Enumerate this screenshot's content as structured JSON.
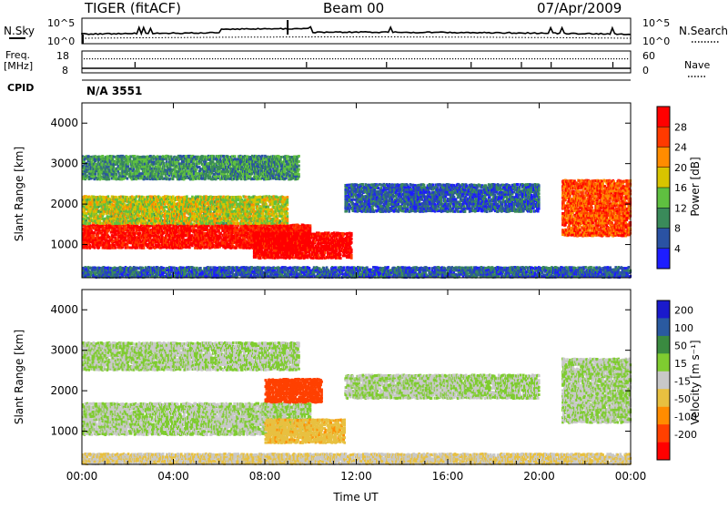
{
  "header": {
    "radar": "TIGER (fitACF)",
    "beam": "Beam 00",
    "date": "07/Apr/2009"
  },
  "top_panels": {
    "nsky_label": "N.Sky",
    "nsearch_label": "N.Search",
    "noise_ticks_left": [
      "10^5",
      "10^0"
    ],
    "noise_ticks_right": [
      "10^5",
      "10^0"
    ],
    "freq_label": "Freq.",
    "freq_unit": "[MHz]",
    "freq_ticks": [
      "18",
      "8"
    ],
    "nave_label": "Nave",
    "nave_ticks": [
      "60",
      "0"
    ],
    "cpid_label": "CPID",
    "cpid_value": "N/A 3551"
  },
  "power_panel": {
    "ylabel": "Slant Range [km]",
    "yticks": [
      "4000",
      "3000",
      "2000",
      "1000"
    ],
    "colorbar_label": "Power [dB]",
    "colorbar_ticks": [
      "28",
      "24",
      "20",
      "16",
      "12",
      "8",
      "4"
    ],
    "colors": [
      "#1d1dff",
      "#2a52a3",
      "#3a8a5a",
      "#5fc040",
      "#d8c400",
      "#ff8c00",
      "#ff3a00",
      "#ff0000"
    ]
  },
  "velocity_panel": {
    "ylabel": "Slant Range [km]",
    "yticks": [
      "4000",
      "3000",
      "2000",
      "1000"
    ],
    "colorbar_label": "Velocity [m s⁻¹]",
    "colorbar_ticks": [
      "200",
      "100",
      "50",
      "15",
      "-15",
      "-50",
      "-100",
      "-200"
    ],
    "colors": [
      "#1a1acc",
      "#2a5aa0",
      "#3a8a40",
      "#7fcc30",
      "#c8c8c8",
      "#e8c040",
      "#ff8c00",
      "#ff4000",
      "#ff0000"
    ]
  },
  "xaxis": {
    "label": "Time UT",
    "ticks": [
      "00:00",
      "04:00",
      "08:00",
      "12:00",
      "16:00",
      "20:00",
      "00:00"
    ]
  },
  "chart_data": {
    "type": "heatmap",
    "title": "TIGER (fitACF)  Beam 00  07/Apr/2009",
    "xlabel": "Time UT",
    "ylabel": "Slant Range [km]",
    "xlim": [
      "00:00",
      "24:00"
    ],
    "ylim": [
      180,
      4500
    ],
    "panels": [
      {
        "name": "Power",
        "unit": "dB",
        "colorbar_range": [
          0,
          30
        ],
        "regions": [
          {
            "t_start": 0.0,
            "t_end": 10.0,
            "range_low": 900,
            "range_high": 1500,
            "value": 28
          },
          {
            "t_start": 7.5,
            "t_end": 11.8,
            "range_low": 650,
            "range_high": 1300,
            "value": 30
          },
          {
            "t_start": 0.0,
            "t_end": 9.0,
            "range_low": 1500,
            "range_high": 2200,
            "value": 16
          },
          {
            "t_start": 0.0,
            "t_end": 9.5,
            "range_low": 2600,
            "range_high": 3200,
            "value": 10
          },
          {
            "t_start": 11.5,
            "t_end": 20.0,
            "range_low": 1800,
            "range_high": 2500,
            "value": 6
          },
          {
            "t_start": 21.0,
            "t_end": 24.0,
            "range_low": 1200,
            "range_high": 2600,
            "value": 24
          },
          {
            "t_start": 0.0,
            "t_end": 24.0,
            "range_low": 180,
            "range_high": 450,
            "value": 6
          }
        ]
      },
      {
        "name": "Velocity",
        "unit": "m s-1",
        "colorbar_range": [
          -250,
          250
        ],
        "regions": [
          {
            "t_start": 0.0,
            "t_end": 10.0,
            "range_low": 900,
            "range_high": 1700,
            "value": 0
          },
          {
            "t_start": 8.0,
            "t_end": 11.5,
            "range_low": 700,
            "range_high": 1300,
            "value": -60
          },
          {
            "t_start": 8.0,
            "t_end": 10.5,
            "range_low": 1700,
            "range_high": 2300,
            "value": -200
          },
          {
            "t_start": 0.0,
            "t_end": 9.5,
            "range_low": 2500,
            "range_high": 3200,
            "value": 0
          },
          {
            "t_start": 11.5,
            "t_end": 20.0,
            "range_low": 1800,
            "range_high": 2400,
            "value": 0
          },
          {
            "t_start": 21.0,
            "t_end": 24.0,
            "range_low": 1200,
            "range_high": 2800,
            "value": 0
          },
          {
            "t_start": 0.0,
            "t_end": 24.0,
            "range_low": 180,
            "range_high": 450,
            "value": -30
          }
        ]
      }
    ]
  }
}
